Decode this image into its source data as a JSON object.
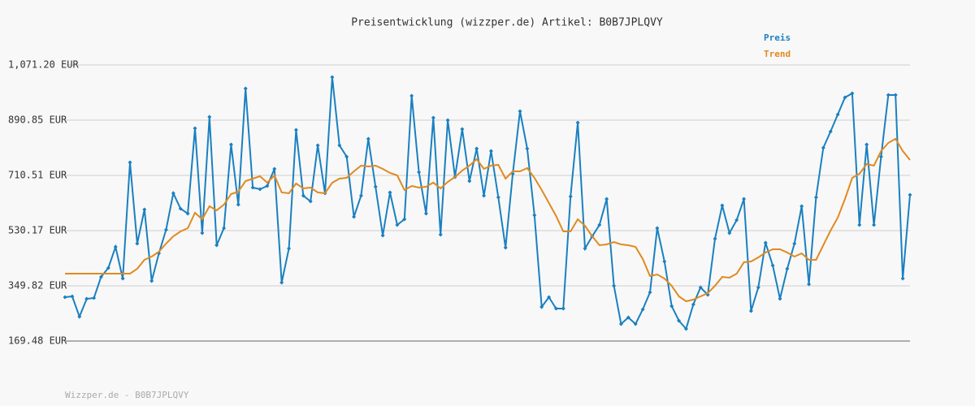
{
  "chart_data": {
    "type": "line",
    "title": "Preisentwicklung (wizzper.de) Artikel: B0B7JPLQVY",
    "footer": "Wizzper.de - B0B7JPLQVY",
    "ylim": [
      169.48,
      1071.2
    ],
    "yticks": [
      {
        "value": 169.48,
        "label": "169.48 EUR"
      },
      {
        "value": 349.82,
        "label": "349.82 EUR"
      },
      {
        "value": 530.17,
        "label": "530.17 EUR"
      },
      {
        "value": 710.51,
        "label": "710.51 EUR"
      },
      {
        "value": 890.85,
        "label": "890.85 EUR"
      },
      {
        "value": 1071.2,
        "label": "1,071.20 EUR"
      }
    ],
    "grid": true,
    "legend": "top-right",
    "series": [
      {
        "name": "Preis",
        "color": "#1a80c0",
        "markers": true,
        "values": [
          312.7,
          315.4,
          249.1,
          307.4,
          310.0,
          379.0,
          408.2,
          477.1,
          373.7,
          753.0,
          487.7,
          599.1,
          365.7,
          455.9,
          532.8,
          652.2,
          601.8,
          585.9,
          864.3,
          522.2,
          901.5,
          482.4,
          538.1,
          811.3,
          615.0,
          994.3,
          670.7,
          665.4,
          676.0,
          731.7,
          360.4,
          471.8,
          859.0,
          644.2,
          625.6,
          808.6,
          652.2,
          1031.4,
          808.6,
          771.5,
          575.3,
          644.2,
          829.8,
          673.4,
          514.3,
          654.8,
          548.7,
          567.3,
          970.4,
          721.1,
          585.9,
          898.8,
          516.9,
          890.8,
          705.2,
          861.7,
          691.9,
          798.0,
          644.2,
          790.1,
          638.9,
          474.5,
          715.8,
          920.0,
          798.0,
          580.6,
          280.9,
          312.7,
          275.6,
          275.6,
          641.6,
          882.9,
          471.8,
          511.6,
          548.7,
          633.6,
          349.8,
          225.2,
          246.4,
          225.2,
          272.9,
          328.6,
          538.1,
          429.4,
          283.5,
          235.8,
          209.3,
          288.8,
          344.5,
          320.7,
          503.7,
          612.4,
          522.2,
          564.6,
          633.6,
          267.6,
          344.5,
          490.4,
          416.1,
          307.4,
          405.5,
          487.7,
          609.7,
          355.1,
          638.9,
          800.7,
          853.7,
          909.4,
          965.1,
          978.4,
          548.7,
          811.3,
          548.7,
          771.5,
          973.1,
          973.1,
          373.7,
          646.9
        ]
      },
      {
        "name": "Trend",
        "color": "#e08a20",
        "markers": false,
        "values": [
          389.6,
          389.6,
          389.6,
          389.6,
          389.6,
          389.6,
          389.6,
          389.6,
          389.6,
          389.6,
          405.5,
          434.7,
          445.3,
          461.2,
          487.7,
          511.6,
          527.5,
          538.1,
          588.5,
          567.3,
          609.7,
          596.5,
          615.0,
          649.5,
          657.5,
          691.9,
          699.9,
          707.9,
          686.6,
          710.5,
          654.8,
          652.2,
          684.0,
          668.1,
          670.7,
          654.8,
          652.2,
          686.6,
          699.9,
          702.6,
          723.8,
          742.3,
          739.7,
          742.3,
          731.7,
          718.5,
          710.5,
          662.8,
          676.0,
          670.7,
          673.4,
          687.2,
          668.1,
          689.3,
          705.2,
          726.4,
          742.3,
          763.5,
          731.7,
          742.3,
          745.0,
          699.9,
          723.8,
          723.8,
          734.4,
          702.6,
          662.8,
          620.3,
          577.9,
          527.5,
          527.5,
          567.3,
          546.1,
          511.6,
          482.4,
          485.1,
          493.0,
          485.1,
          482.4,
          477.1,
          437.4,
          381.7,
          387.0,
          373.7,
          349.8,
          315.4,
          299.4,
          304.7,
          315.4,
          326.0,
          349.8,
          379.0,
          376.4,
          389.6,
          426.7,
          429.4,
          442.6,
          458.6,
          469.2,
          469.2,
          458.6,
          445.3,
          455.9,
          434.7,
          434.7,
          482.4,
          530.2,
          572.6,
          633.6,
          702.6,
          715.8,
          747.6,
          742.3,
          790.1,
          816.6,
          829.8,
          790.1,
          760.9
        ]
      }
    ]
  }
}
